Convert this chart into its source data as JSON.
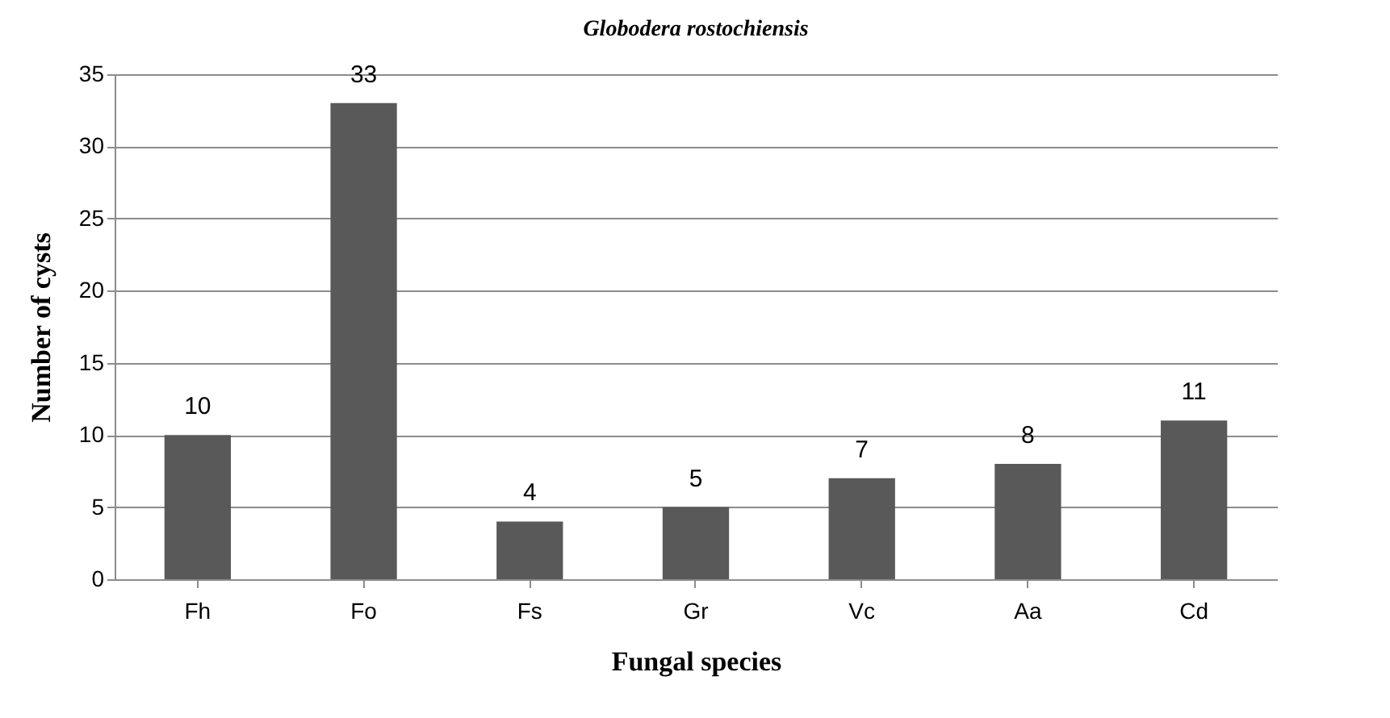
{
  "chart_data": {
    "type": "bar",
    "title": "Globodera rostochiensis",
    "xlabel": "Fungal species",
    "ylabel": "Number of cysts",
    "categories": [
      "Fh",
      "Fo",
      "Fs",
      "Gr",
      "Vc",
      "Aa",
      "Cd"
    ],
    "values": [
      10,
      33,
      4,
      5,
      7,
      8,
      11
    ],
    "color": "#595959",
    "ylim": [
      0,
      35
    ],
    "yticks": [
      0,
      5,
      10,
      15,
      20,
      25,
      30,
      35
    ],
    "grid": "y",
    "data_labels": true
  }
}
